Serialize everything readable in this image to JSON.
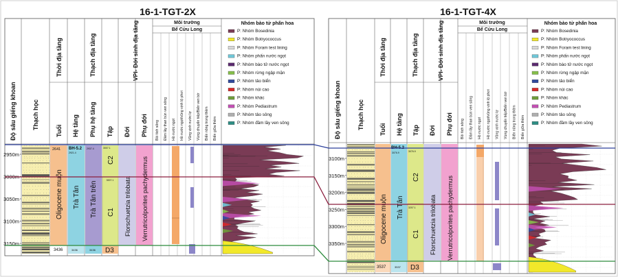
{
  "colors": {
    "Bosedinia": "#7a3b55",
    "Botryococcus": "#f2e82a",
    "Foram test lining": "#d9d9d9",
    "phan nuoc ngot": "#6fc7d8",
    "bao tu nuoc ngot": "#5a2a6e",
    "rung ngap man": "#86bf4b",
    "tao bien": "#314a9e",
    "nui cao": "#d82a2a",
    "khac": "#6e9c3a",
    "Pediastrum": "#c24fb2",
    "tao song": "#b0b0b0",
    "dam lay ven song": "#2f8f86",
    "lithology_sand": "#f7efb0",
    "lithology_shale": "#4c4c4c",
    "oligocene": "#f6c08e",
    "tra_tan": "#8ed3e2",
    "tra_tan_tren": "#a79bd0",
    "c_zone": "#dde88a",
    "flora_zone": "#cfcde8",
    "verru_zone": "#f2a2cf",
    "env_bar_orange": "#f4a868",
    "env_bar_purple": "#8c86c8",
    "corr_blue": "#2a3d9a",
    "corr_red": "#8a1c3c",
    "corr_green": "#2c8a3c"
  },
  "headers": {
    "depth": "Độ sâu giếng khoan",
    "lithology": "Thạch học",
    "chrono": "Thời địa tầng",
    "age": "Tuổi",
    "litho_strat": "Thạch địa tầng",
    "system": "Hệ tầng",
    "subsystem": "Phụ hệ tầng",
    "member": "Tập",
    "vpi": "VPI- Đới sinh địa tầng",
    "zone": "Đới",
    "subzone": "Phụ đới",
    "environment": "Môi trường",
    "basin": "Bể Cửu Long",
    "env_columns": [
      "Bồi tích sông",
      "Đầm lầy than bùn ven sông",
      "Hồ nước ngọt",
      "Hồ nước ngọt/vũng vịnh lộ phơi",
      "Vũng vịnh nước lợ",
      "Vùng chuyển tiếp/Biển ven bờ",
      "Biển nông trong thềm",
      "Biển giữa thềm"
    ],
    "palyno": "Nhóm bào tử phấn hoa"
  },
  "legend": [
    {
      "label": "P: Nhóm Bosedinia",
      "color": "#7a3b55"
    },
    {
      "label": "P: Nhóm Botryococcus",
      "color": "#f2e82a"
    },
    {
      "label": "P: Nhóm Foram test lining",
      "color": "#d9d9d9"
    },
    {
      "label": "P: Nhóm phấn nước ngọt",
      "color": "#6fc7d8"
    },
    {
      "label": "P: Nhóm bào tử nước ngọt",
      "color": "#5a2a6e"
    },
    {
      "label": "P: Nhóm rừng ngập mặn",
      "color": "#86bf4b"
    },
    {
      "label": "P: Nhóm tảo biển",
      "color": "#314a9e"
    },
    {
      "label": "P: Nhóm núi cao",
      "color": "#d82a2a"
    },
    {
      "label": "P: Nhóm khác",
      "color": "#6e9c3a"
    },
    {
      "label": "P: Nhóm Pediastrum",
      "color": "#c24fb2"
    },
    {
      "label": "P: Nhóm tảo sông",
      "color": "#b0b0b0"
    },
    {
      "label": "P: Nhóm đầm lầy ven sông",
      "color": "#2f8f86"
    }
  ],
  "wells": [
    {
      "title": "16-1-TGT-2X",
      "depth_labels": [
        "2950m",
        "3000m",
        "3050m",
        "3100m",
        "3150m"
      ],
      "age": "Oligocene muộn",
      "age_top": "2641",
      "age_bottom": "3436",
      "system": "Trà Tân",
      "system_marker": "BH-5.2",
      "subsystem": "Trà Tân trên",
      "member_upper": "C2",
      "member_lower": "C1",
      "member_base": "D3",
      "zone": "Florschuetzia trilobata",
      "subzone": "Verrutricolporites pachydermus",
      "small_values": [
        "2921.4",
        "2937.4",
        "3007.1",
        "3436",
        "3436"
      ]
    },
    {
      "title": "16-1-TGT-4X",
      "depth_labels": [
        "3100m",
        "3150m",
        "3200m",
        "3250m",
        "3300m",
        "3350m"
      ],
      "age": "Oligocene muộn",
      "age_bottom": "3537",
      "system": "Trà Tân",
      "system_marker": "BH-5.2",
      "member_upper": "C2",
      "member_lower": "C1",
      "member_base": "D3",
      "zone": "Florschuetzia trilobata",
      "subzone": "Verrutricolporites pachydermus",
      "small_values": [
        "3076.9",
        "3076.9",
        "3207.1",
        "3537"
      ]
    }
  ]
}
